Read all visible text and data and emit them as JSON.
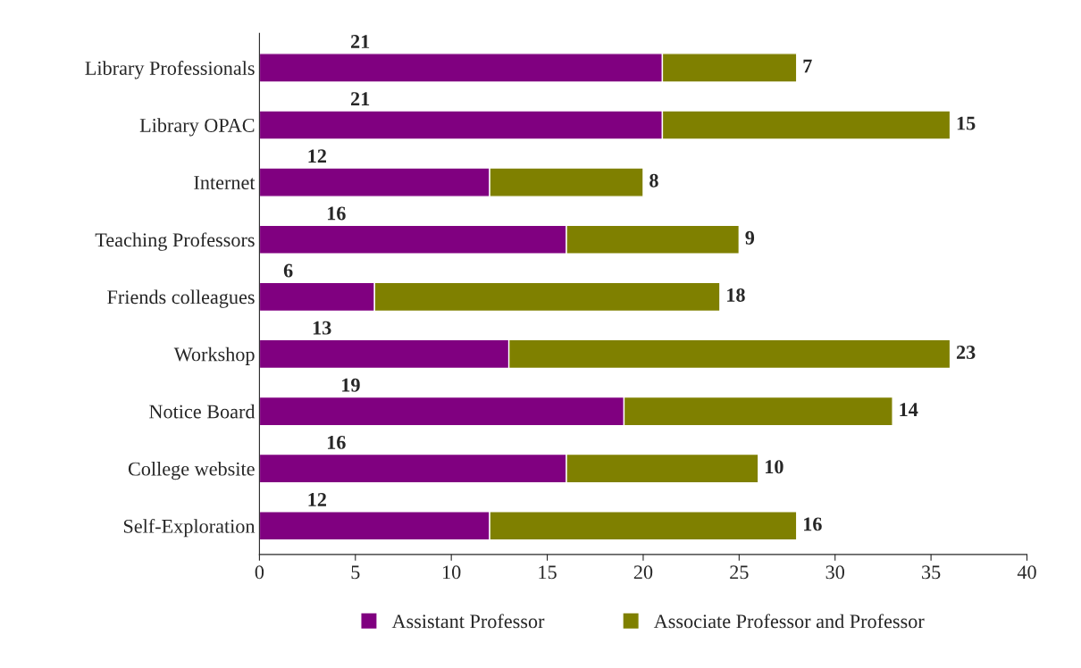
{
  "chart_data": {
    "type": "bar",
    "orientation": "horizontal",
    "stacked": true,
    "data_labels": true,
    "legend": "bottom",
    "grid": false,
    "categories": [
      "Library Professionals",
      "Library OPAC",
      "Internet",
      "Teaching Professors",
      "Friends colleagues",
      "Workshop",
      "Notice Board",
      "College website",
      "Self-Exploration"
    ],
    "series": [
      {
        "name": "Assistant Professor",
        "color": "#800080",
        "values": [
          21,
          21,
          12,
          16,
          6,
          13,
          19,
          16,
          12
        ]
      },
      {
        "name": "Associate Professor and Professor",
        "color": "#7f8000",
        "values": [
          7,
          15,
          8,
          9,
          18,
          23,
          14,
          10,
          16
        ]
      }
    ],
    "xlim": [
      0,
      40
    ],
    "xticks": [
      0,
      5,
      10,
      15,
      20,
      25,
      30,
      35,
      40
    ]
  }
}
